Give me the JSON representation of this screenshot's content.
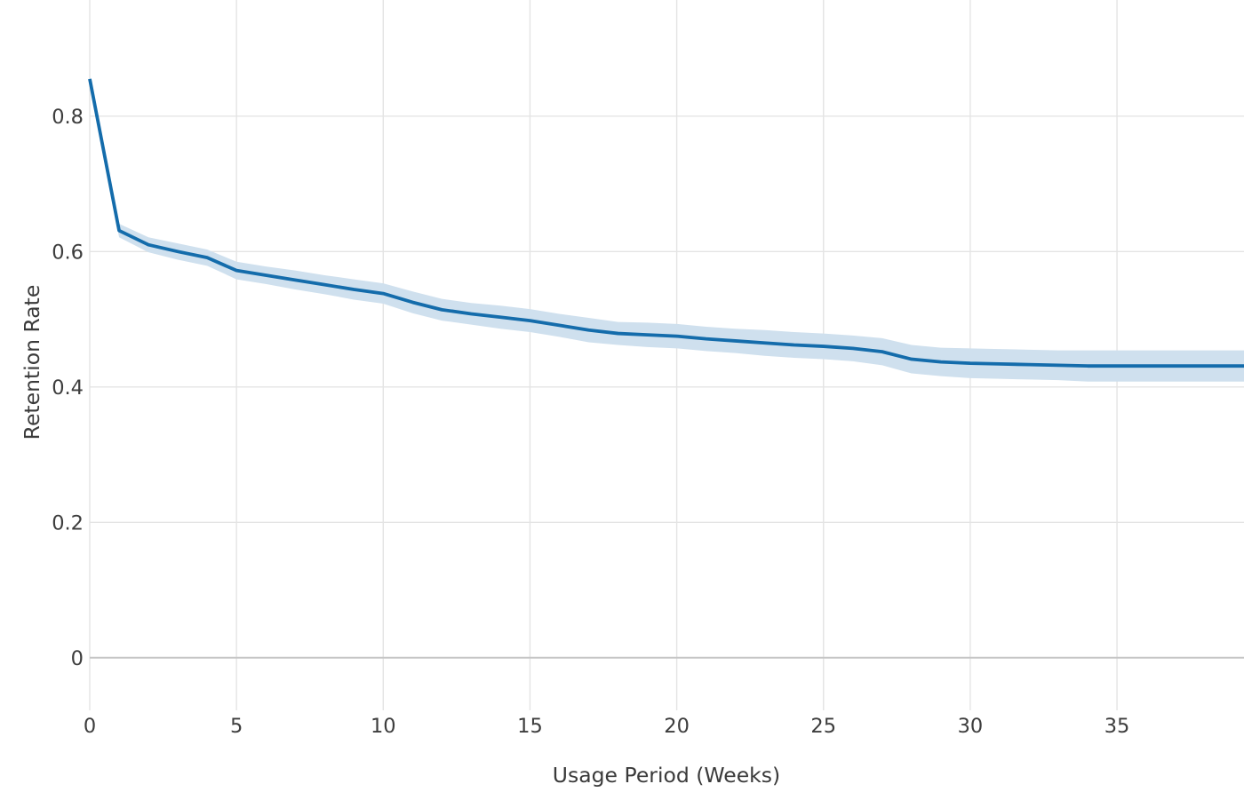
{
  "figure": {
    "background_color": "#ffffff"
  },
  "chart_data": {
    "type": "line",
    "title": "",
    "xlabel": "Usage Period (Weeks)",
    "ylabel": "Retention Rate",
    "legend": false,
    "grid": true,
    "xlim": [
      0,
      39.35
    ],
    "ylim": [
      -0.078,
      0.972
    ],
    "xticks": [
      0,
      5,
      10,
      15,
      20,
      25,
      30,
      35
    ],
    "xticklabels": [
      "0",
      "5",
      "10",
      "15",
      "20",
      "25",
      "30",
      "35"
    ],
    "yticks": [
      0,
      0.2,
      0.4,
      0.6,
      0.8
    ],
    "yticklabels": [
      "0",
      "0.2",
      "0.4",
      "0.6",
      "0.8"
    ],
    "x": [
      0,
      1,
      2,
      3,
      4,
      5,
      6,
      7,
      8,
      9,
      10,
      11,
      12,
      13,
      14,
      15,
      16,
      17,
      18,
      19,
      20,
      21,
      22,
      23,
      24,
      25,
      26,
      27,
      28,
      29,
      30,
      31,
      32,
      33,
      34,
      35,
      36,
      37,
      38,
      39
    ],
    "y": [
      0.855,
      0.631,
      0.61,
      0.6,
      0.591,
      0.572,
      0.565,
      0.558,
      0.551,
      0.544,
      0.538,
      0.525,
      0.514,
      0.508,
      0.503,
      0.498,
      0.491,
      0.484,
      0.479,
      0.477,
      0.475,
      0.471,
      0.468,
      0.465,
      0.462,
      0.46,
      0.457,
      0.452,
      0.441,
      0.437,
      0.435,
      0.434,
      0.433,
      0.432,
      0.431,
      0.431,
      0.431,
      0.431,
      0.431,
      0.431
    ],
    "ci_upper": [
      0.859,
      0.641,
      0.621,
      0.612,
      0.603,
      0.585,
      0.578,
      0.572,
      0.565,
      0.559,
      0.553,
      0.541,
      0.53,
      0.524,
      0.52,
      0.515,
      0.508,
      0.502,
      0.496,
      0.495,
      0.493,
      0.489,
      0.486,
      0.484,
      0.481,
      0.479,
      0.476,
      0.472,
      0.462,
      0.458,
      0.457,
      0.456,
      0.455,
      0.454,
      0.454,
      0.454,
      0.454,
      0.454,
      0.454,
      0.454
    ],
    "ci_lower": [
      0.851,
      0.621,
      0.599,
      0.588,
      0.579,
      0.559,
      0.552,
      0.544,
      0.537,
      0.529,
      0.523,
      0.509,
      0.498,
      0.492,
      0.486,
      0.481,
      0.474,
      0.466,
      0.462,
      0.459,
      0.457,
      0.453,
      0.45,
      0.446,
      0.443,
      0.441,
      0.438,
      0.432,
      0.42,
      0.416,
      0.413,
      0.412,
      0.411,
      0.41,
      0.408,
      0.408,
      0.408,
      0.408,
      0.408,
      0.408
    ],
    "colors": {
      "line": "#146cab",
      "band": "#cfe0ee",
      "grid": "#e4e4e4",
      "zeroline": "#c6c6c6",
      "text": "#3d3d3d"
    }
  }
}
